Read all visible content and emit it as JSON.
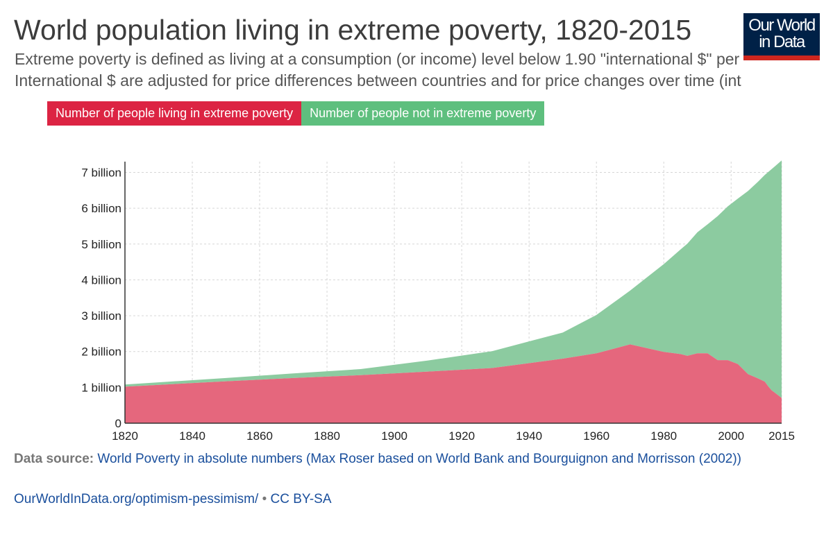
{
  "header": {
    "title": "World population living in extreme poverty, 1820-2015",
    "subtitle_line1": "Extreme poverty is defined as living at a consumption (or income) level below 1.90 \"international $\" per",
    "subtitle_line2": "International $ are adjusted for price differences between countries and for price changes over time (int"
  },
  "logo": {
    "line1": "Our World",
    "line2": "in Data"
  },
  "footer": {
    "source_label": "Data source:",
    "source_text": "World Poverty in absolute numbers (Max Roser based on World Bank and Bourguignon and Morrisson (2002))",
    "link": "OurWorldInData.org/optimism-pessimism/",
    "separator": "•",
    "license": "CC BY-SA"
  },
  "colors": {
    "poverty": "#e5677d",
    "not_poverty": "#8ccba0",
    "legend_poverty": "#dc2443",
    "legend_not": "#5ebf7e"
  },
  "chart_data": {
    "type": "area",
    "stacked": true,
    "title": "World population living in extreme poverty, 1820-2015",
    "xlim": [
      1820,
      2015
    ],
    "ylim": [
      0,
      7300000000
    ],
    "x_ticks": [
      1820,
      1840,
      1860,
      1880,
      1900,
      1920,
      1940,
      1960,
      1980,
      2000,
      2015
    ],
    "y_ticks": [
      {
        "value": 0,
        "label": "0"
      },
      {
        "value": 1000000000,
        "label": "1 billion"
      },
      {
        "value": 2000000000,
        "label": "2 billion"
      },
      {
        "value": 3000000000,
        "label": "3 billion"
      },
      {
        "value": 4000000000,
        "label": "4 billion"
      },
      {
        "value": 5000000000,
        "label": "5 billion"
      },
      {
        "value": 6000000000,
        "label": "6 billion"
      },
      {
        "value": 7000000000,
        "label": "7 billion"
      }
    ],
    "grid": true,
    "legend_position": "top-left",
    "x": [
      1820,
      1850,
      1870,
      1890,
      1910,
      1929,
      1950,
      1960,
      1970,
      1980,
      1985,
      1987,
      1990,
      1993,
      1996,
      1999,
      2002,
      2005,
      2008,
      2010,
      2011,
      2012,
      2013,
      2015
    ],
    "series": [
      {
        "name": "Number of people living in extreme poverty",
        "values": [
          1020000000,
          1170000000,
          1260000000,
          1340000000,
          1440000000,
          1540000000,
          1800000000,
          1950000000,
          2200000000,
          1990000000,
          1930000000,
          1880000000,
          1950000000,
          1950000000,
          1760000000,
          1760000000,
          1650000000,
          1370000000,
          1250000000,
          1160000000,
          1030000000,
          920000000,
          850000000,
          705000000
        ]
      },
      {
        "name": "Number of people not in extreme poverty",
        "values": [
          60000000,
          90000000,
          130000000,
          170000000,
          310000000,
          470000000,
          730000000,
          1070000000,
          1500000000,
          2450000000,
          2920000000,
          3130000000,
          3380000000,
          3600000000,
          4020000000,
          4290000000,
          4620000000,
          5110000000,
          5490000000,
          5770000000,
          5980000000,
          6170000000,
          6320000000,
          6630000000
        ]
      }
    ]
  }
}
